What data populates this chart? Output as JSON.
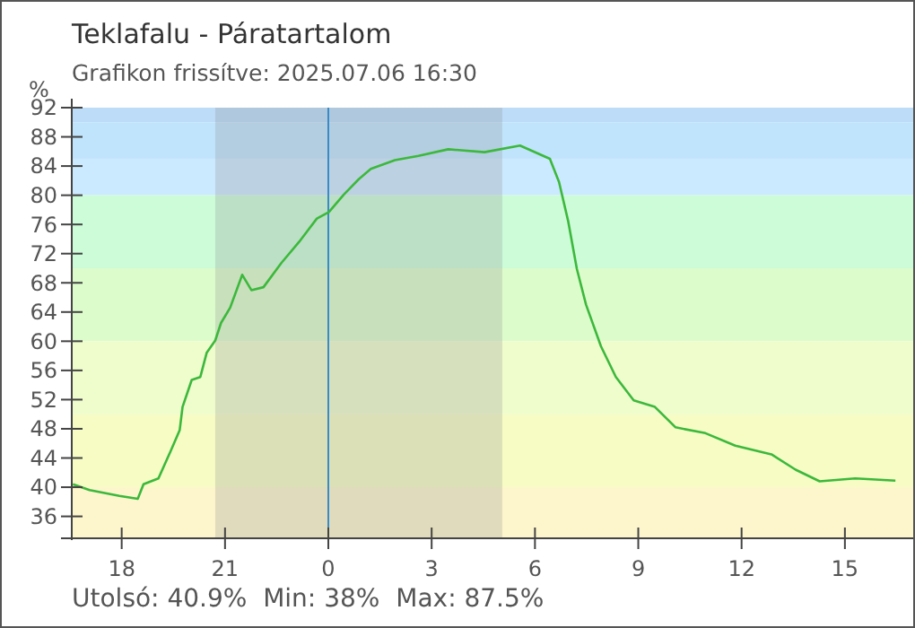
{
  "chart_data": {
    "type": "line",
    "title": "Teklafalu - Páratartalom",
    "subtitle": "Grafikon frissítve: 2025.07.06 16:30",
    "ylabel": "%",
    "annotations": [
      "Utolsó: 40.9%  Min: 38%  Max: 87.5%"
    ],
    "x": [
      "2025-07-05T16:35",
      "2025-07-05T17:04",
      "2025-07-05T17:56",
      "2025-07-05T18:28",
      "2025-07-05T18:38",
      "2025-07-05T19:04",
      "2025-07-05T19:25",
      "2025-07-05T19:41",
      "2025-07-05T19:46",
      "2025-07-05T20:02",
      "2025-07-05T20:17",
      "2025-07-05T20:28",
      "2025-07-05T20:43",
      "2025-07-05T20:53",
      "2025-07-05T21:09",
      "2025-07-05T21:30",
      "2025-07-05T21:46",
      "2025-07-05T22:07",
      "2025-07-05T22:38",
      "2025-07-05T23:09",
      "2025-07-05T23:40",
      "2025-07-06T00:01",
      "2025-07-06T00:27",
      "2025-07-06T00:53",
      "2025-07-06T01:14",
      "2025-07-06T01:56",
      "2025-07-06T02:37",
      "2025-07-06T03:29",
      "2025-07-06T04:32",
      "2025-07-06T05:34",
      "2025-07-06T06:26",
      "2025-07-06T06:42",
      "2025-07-06T06:58",
      "2025-07-06T07:13",
      "2025-07-06T07:29",
      "2025-07-06T07:55",
      "2025-07-06T08:21",
      "2025-07-06T08:52",
      "2025-07-06T09:29",
      "2025-07-06T10:05",
      "2025-07-06T10:57",
      "2025-07-06T11:49",
      "2025-07-06T12:52",
      "2025-07-06T13:34",
      "2025-07-06T14:16",
      "2025-07-06T15:18",
      "2025-07-06T16:28"
    ],
    "series": [
      {
        "color": "#3cb83c",
        "values": [
          40.4,
          39.6,
          38.8,
          38.4,
          40.4,
          41.2,
          44.9,
          47.8,
          51.0,
          54.7,
          55.1,
          58.4,
          60.1,
          62.5,
          64.6,
          69.1,
          67.0,
          67.4,
          70.7,
          73.6,
          76.8,
          77.7,
          80.1,
          82.2,
          83.6,
          84.8,
          85.4,
          86.3,
          85.9,
          86.8,
          85.0,
          81.8,
          76.4,
          69.9,
          65.0,
          59.3,
          55.1,
          51.9,
          51.0,
          48.2,
          47.4,
          45.7,
          44.5,
          42.4,
          40.8,
          41.2,
          40.9
        ]
      }
    ],
    "xlim": [
      "2025-07-05T16:33",
      "2025-07-06T16:59"
    ],
    "ylim": [
      33,
      92
    ],
    "xticks": [
      {
        "value": "2025-07-05T18:00",
        "label": "18"
      },
      {
        "value": "2025-07-05T21:00",
        "label": "21"
      },
      {
        "value": "2025-07-06T00:00",
        "label": "0"
      },
      {
        "value": "2025-07-06T03:00",
        "label": "3"
      },
      {
        "value": "2025-07-06T06:00",
        "label": "6"
      },
      {
        "value": "2025-07-06T09:00",
        "label": "9"
      },
      {
        "value": "2025-07-06T12:00",
        "label": "12"
      },
      {
        "value": "2025-07-06T15:00",
        "label": "15"
      }
    ],
    "yticks": [
      36,
      40,
      44,
      48,
      52,
      56,
      60,
      64,
      68,
      72,
      76,
      80,
      84,
      88,
      92
    ],
    "bands": [
      {
        "axis": "y",
        "from": 90,
        "to": 92,
        "color": "#bcdcf8"
      },
      {
        "axis": "y",
        "from": 85,
        "to": 90,
        "color": "#c0e4fc"
      },
      {
        "axis": "y",
        "from": 80,
        "to": 85,
        "color": "#cceaff"
      },
      {
        "axis": "y",
        "from": 70,
        "to": 80,
        "color": "#ccfcd8"
      },
      {
        "axis": "y",
        "from": 60,
        "to": 70,
        "color": "#ddfccc"
      },
      {
        "axis": "y",
        "from": 50,
        "to": 60,
        "color": "#effccc"
      },
      {
        "axis": "y",
        "from": 40,
        "to": 50,
        "color": "#f6fcc4"
      },
      {
        "axis": "y",
        "from": 33,
        "to": 40,
        "color": "#fdf6cc"
      },
      {
        "axis": "x",
        "from": "2025-07-05T20:43",
        "to": "2025-07-06T05:03",
        "color": "#8a8a8a"
      }
    ],
    "ref_lines": [
      {
        "axis": "x",
        "value": "2025-07-06T00:00",
        "color": "#3a8ac8"
      }
    ],
    "grid": false,
    "marker": "none",
    "line_style": "solid"
  }
}
